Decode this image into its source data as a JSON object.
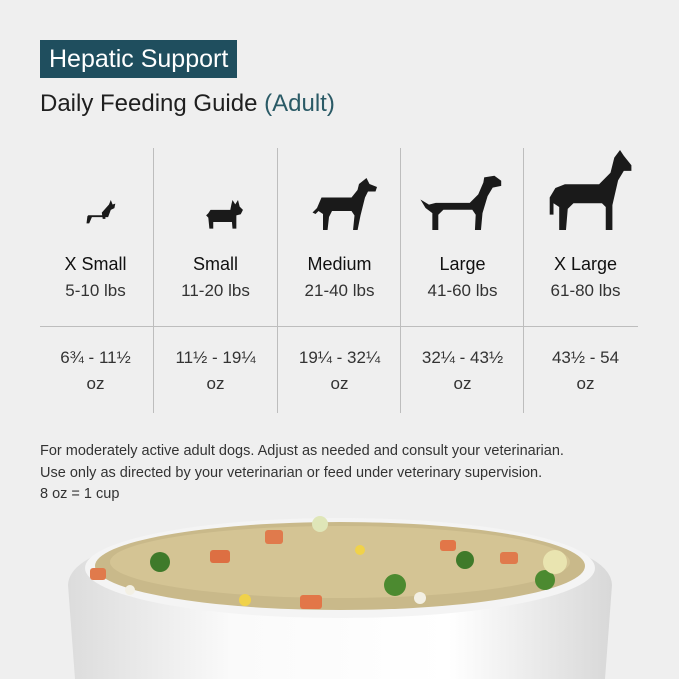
{
  "header": {
    "badge": "Hepatic Support",
    "title": "Daily Feeding Guide",
    "title_suffix": "(Adult)"
  },
  "table": {
    "columns": [
      {
        "name": "X Small",
        "weight": "5-10 lbs",
        "amount": "6¾ - 11½",
        "unit": "oz"
      },
      {
        "name": "Small",
        "weight": "11-20 lbs",
        "amount": "11½ - 19¼",
        "unit": "oz"
      },
      {
        "name": "Medium",
        "weight": "21-40 lbs",
        "amount": "19¼ - 32¼",
        "unit": "oz"
      },
      {
        "name": "Large",
        "weight": "41-60 lbs",
        "amount": "32¼ - 43½",
        "unit": "oz"
      },
      {
        "name": "X Large",
        "weight": "61-80 lbs",
        "amount": "43½ - 54",
        "unit": "oz"
      }
    ]
  },
  "notes": [
    "For moderately active adult dogs. Adjust as needed and consult your veterinarian.",
    "Use only as directed by your veterinarian or feed under veterinary supervision.",
    "8 oz = 1 cup"
  ]
}
